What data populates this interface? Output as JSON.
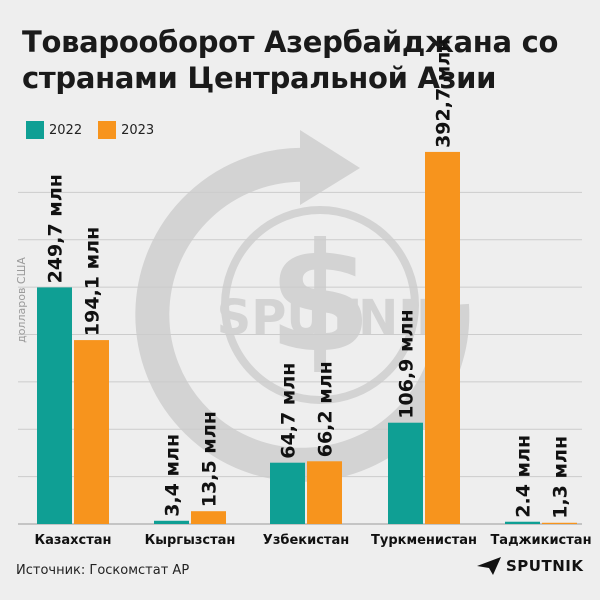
{
  "title": "Товарооборот Азербайджана со странами Центральной Азии",
  "legend": [
    {
      "label": "2022",
      "color": "#0f9f94"
    },
    {
      "label": "2023",
      "color": "#f7941d"
    }
  ],
  "watermark": "SPUTNIK",
  "source": "Источник: Госкомстат АР",
  "brand": "SPUTNIK",
  "chart_data": {
    "type": "bar",
    "ylabel": "долларов США",
    "ylim": [
      0,
      400
    ],
    "grid": true,
    "legend_position": "top-left",
    "categories": [
      "Казахстан",
      "Кыргызстан",
      "Узбекистан",
      "Туркменистан",
      "Таджикистан"
    ],
    "series": [
      {
        "name": "2022",
        "color": "#0f9f94",
        "values": [
          249.7,
          3.4,
          64.7,
          106.9,
          2.4
        ],
        "labels": [
          "249,7 млн",
          "3,4 млн",
          "64,7 млн",
          "106,9 млн",
          "2.4 млн"
        ]
      },
      {
        "name": "2023",
        "color": "#f7941d",
        "values": [
          194.1,
          13.5,
          66.2,
          392.7,
          1.3
        ],
        "labels": [
          "194,1 млн",
          "13,5 млн",
          "66,2 млн",
          "392,7 млн",
          "1,3 млн"
        ]
      }
    ]
  }
}
